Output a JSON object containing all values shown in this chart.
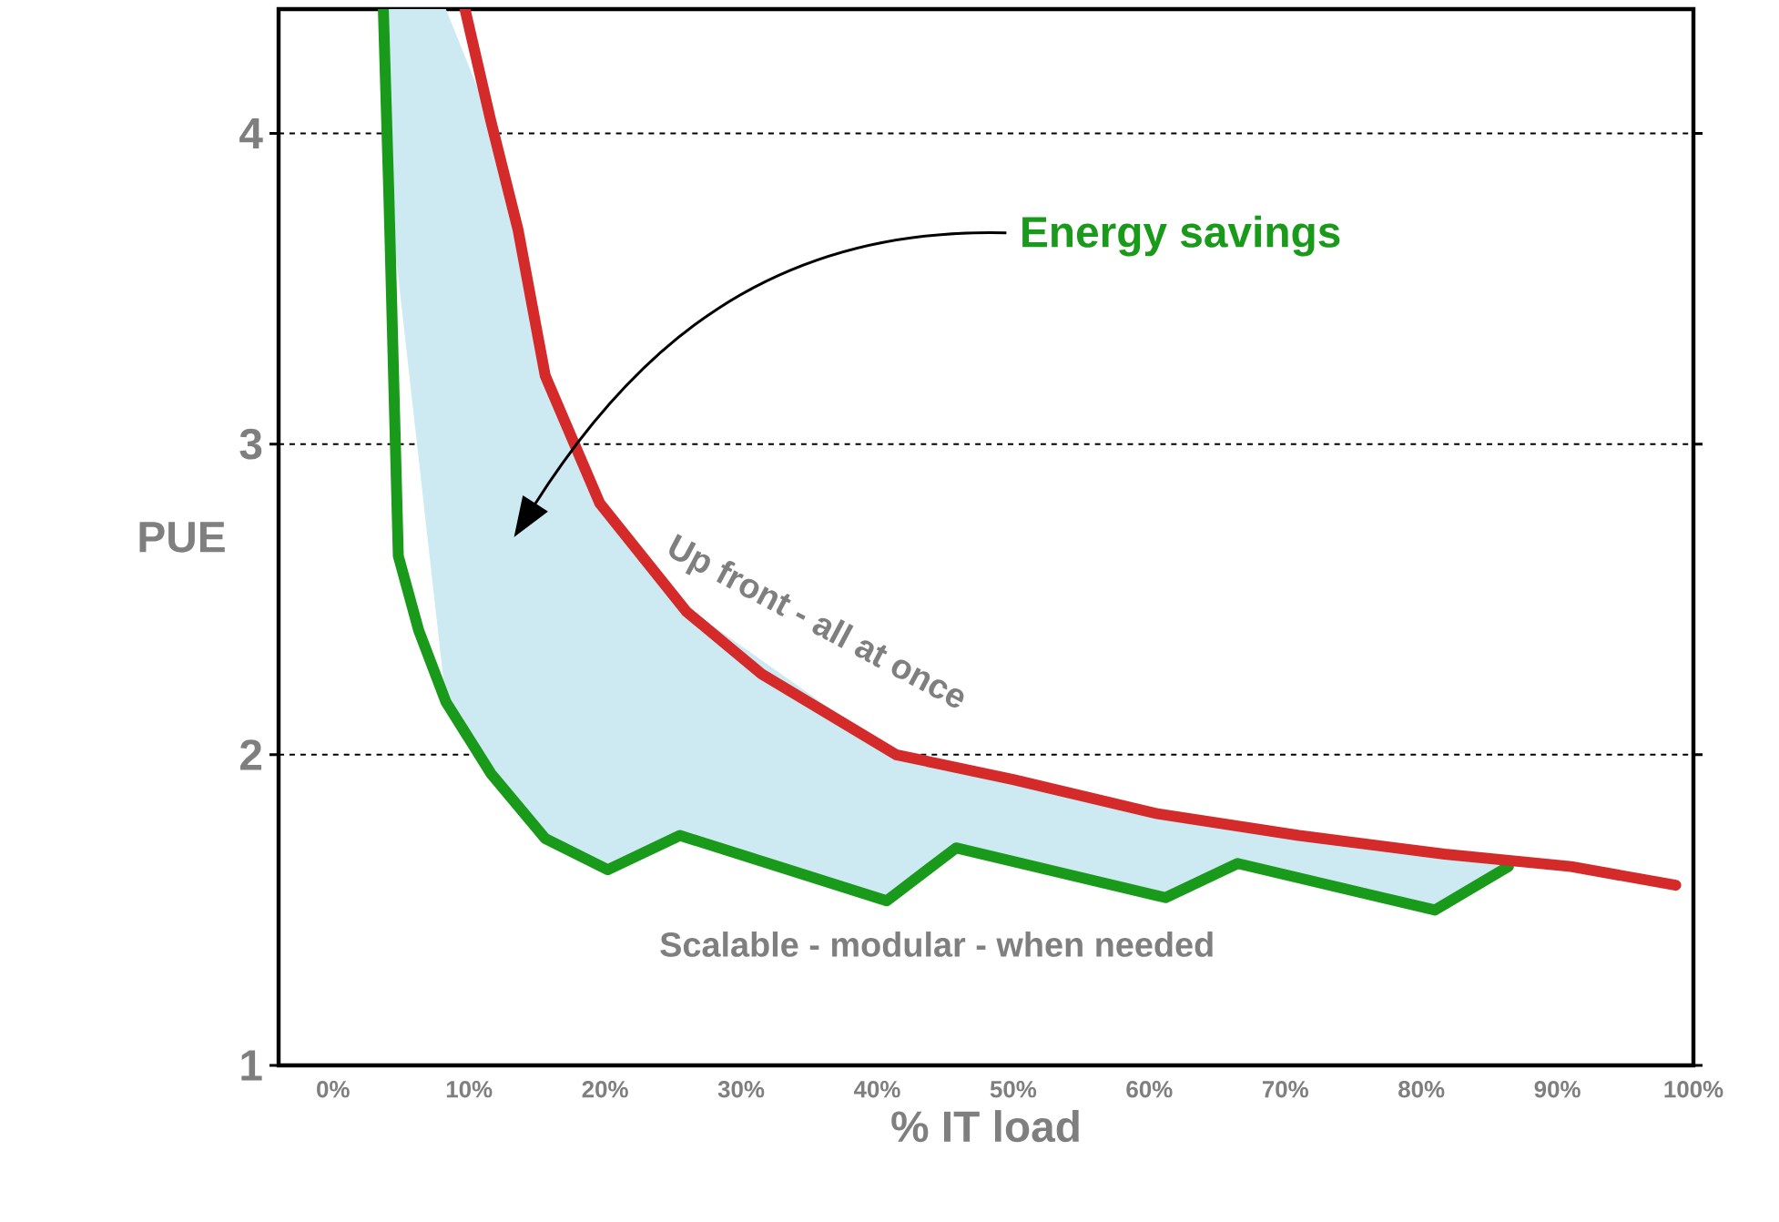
{
  "chart_data": {
    "type": "line",
    "xlabel": "% IT load",
    "ylabel": "PUE",
    "xlim": [
      -4,
      100
    ],
    "ylim": [
      1,
      4.4
    ],
    "xticks": [
      {
        "value": 0,
        "label": "0%"
      },
      {
        "value": 10,
        "label": "10%"
      },
      {
        "value": 20,
        "label": "20%"
      },
      {
        "value": 30,
        "label": "30%"
      },
      {
        "value": 40,
        "label": "40%"
      },
      {
        "value": 50,
        "label": "50%"
      },
      {
        "value": 60,
        "label": "60%"
      },
      {
        "value": 70,
        "label": "70%"
      },
      {
        "value": 80,
        "label": "80%"
      },
      {
        "value": 90,
        "label": "90%"
      },
      {
        "value": 100,
        "label": "100%"
      }
    ],
    "yticks": [
      1,
      2,
      3,
      4
    ],
    "grid": "y",
    "line_style": "solid",
    "marker": "none",
    "annotations": [
      "Energy savings"
    ],
    "series": [
      {
        "name": "Scalable - modular - when needed",
        "color": "#1a9a1a",
        "x": [
          3.7,
          4.1,
          4.8,
          6.3,
          8.3,
          11.6,
          15.6,
          20.2,
          25.5,
          40.7,
          45.8,
          61.2,
          66.5,
          81,
          86.4
        ],
        "values": [
          4.4,
          3.81,
          2.64,
          2.4,
          2.17,
          1.94,
          1.73,
          1.63,
          1.74,
          1.53,
          1.7,
          1.54,
          1.65,
          1.5,
          1.64
        ],
        "lower": [
          4.4,
          3.81,
          null,
          null,
          2.17,
          1.94,
          1.73,
          1.63,
          1.74,
          1.53,
          1.7,
          1.54,
          1.65,
          1.5,
          1.64
        ],
        "upper": [
          4.4,
          4.4,
          null,
          null,
          4.4,
          4.04,
          3.22,
          2.78,
          2.49,
          2.02,
          1.96,
          1.81,
          1.77,
          1.68,
          1.66
        ]
      },
      {
        "name": "Up front - all at once",
        "color": "#d42a2a",
        "x": [
          9.7,
          11.6,
          13.6,
          15.6,
          19.6,
          26,
          31.5,
          41.4,
          50,
          60.6,
          71,
          81.7,
          91,
          98.7
        ],
        "values": [
          4.4,
          4.04,
          3.69,
          3.22,
          2.81,
          2.46,
          2.26,
          2.0,
          1.92,
          1.81,
          1.74,
          1.68,
          1.64,
          1.58
        ]
      }
    ]
  }
}
